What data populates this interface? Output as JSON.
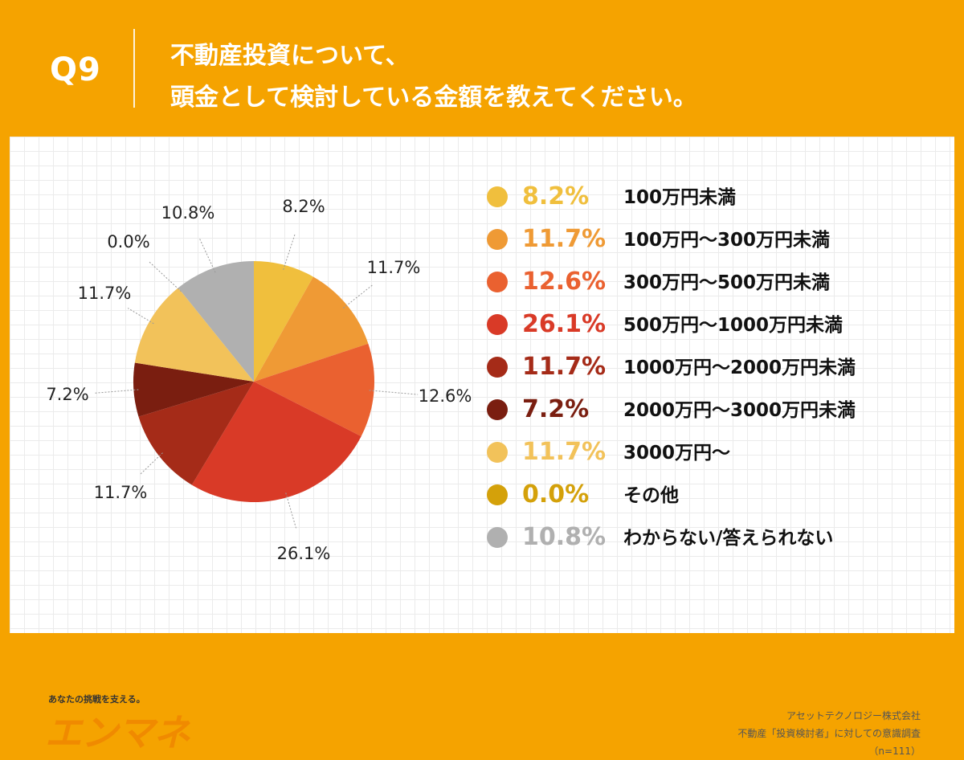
{
  "header": {
    "question_label": "Q9",
    "title_line1": "不動産投資について、",
    "title_line2": "頭金として検討している金額を教えてください。"
  },
  "chart_data": {
    "type": "pie",
    "categories": [
      "100万円未満",
      "100万円〜300万円未満",
      "300万円〜500万円未満",
      "500万円〜1000万円未満",
      "1000万円〜2000万円未満",
      "2000万円〜3000万円未満",
      "3000万円〜",
      "その他",
      "わからない/答えられない"
    ],
    "values": [
      8.2,
      11.7,
      12.6,
      26.1,
      11.7,
      7.2,
      11.7,
      0.0,
      10.8
    ],
    "value_labels": [
      "8.2%",
      "11.7%",
      "12.6%",
      "26.1%",
      "11.7%",
      "7.2%",
      "11.7%",
      "0.0%",
      "10.8%"
    ],
    "colors": [
      "#f0bf3d",
      "#ef9a35",
      "#ea6130",
      "#d93a27",
      "#a52b18",
      "#7a1e10",
      "#f2c25a",
      "#d4a10a",
      "#b0b0b0"
    ],
    "start": "12 o'clock",
    "direction": "clockwise",
    "legend_placement": "right"
  },
  "brand": {
    "tagline": "あなたの挑戦を支える。",
    "logo": "エンマネ"
  },
  "source": {
    "line1": "アセットテクノロジー株式会社",
    "line2": "不動産「投資検討者」に対しての意識調査",
    "line3": "（n=111）"
  }
}
